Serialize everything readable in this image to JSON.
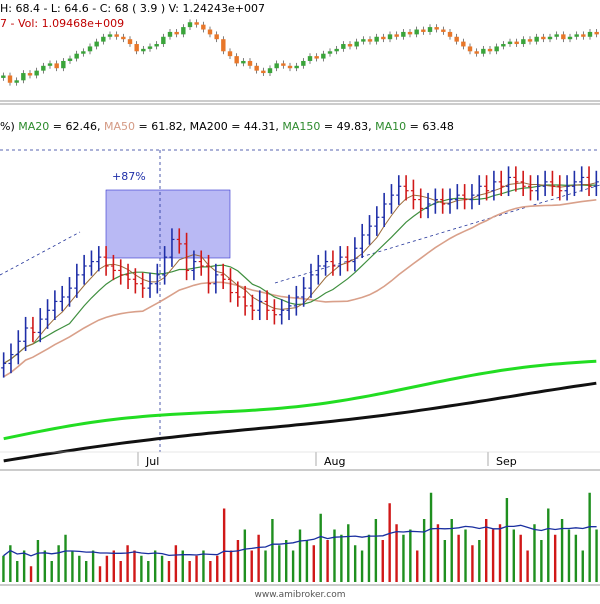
{
  "colors": {
    "up": "#1f2fa8",
    "down": "#d01818",
    "cs_up": "#3aa43a",
    "cs_down": "#e8772a",
    "ma20": "#3f8f3f",
    "ma50": "#d9a08a",
    "ma10": "#9b6b3a",
    "ma150": "#22dd22",
    "ma200": "#111111",
    "volma": "#1a2fa0",
    "box": "#b9b9f4",
    "box_border": "#3333cc"
  },
  "pane1": {
    "header_text": "H: 68.4 - L: 64.6 - C: 68 ( 3.9 ) V: 1.24243e+007",
    "vol_text": "7 - Vol: 1.09468e+009"
  },
  "pane2": {
    "header_parts": [
      {
        "text": "%)",
        "color": "#000000"
      },
      {
        "text": "MA20",
        "color": "#2e8b2e"
      },
      {
        "text": "= 62.46,",
        "color": "#000000"
      },
      {
        "text": "MA50",
        "color": "#d49a84"
      },
      {
        "text": "= 61.82,",
        "color": "#000000"
      },
      {
        "text": "MA200",
        "color": "#000000"
      },
      {
        "text": "= 44.31,",
        "color": "#000000"
      },
      {
        "text": "MA150",
        "color": "#2e8b2e"
      },
      {
        "text": "= 49.83,",
        "color": "#000000"
      },
      {
        "text": "MA10",
        "color": "#2e8b2e"
      },
      {
        "text": "= 63.48",
        "color": "#000000"
      }
    ],
    "annotation": "+87%",
    "months": [
      "Jul",
      "Aug",
      "Sep"
    ]
  },
  "footer": {
    "watermark": "www.amibroker.com"
  },
  "chart_data": [
    {
      "type": "candlestick",
      "pane": "overview",
      "values": [
        50,
        47,
        48,
        51,
        50,
        52,
        54,
        55,
        53,
        56,
        57,
        59,
        60,
        62,
        64,
        66,
        67,
        66,
        65,
        63,
        60,
        61,
        62,
        63,
        66,
        68,
        67,
        70,
        72,
        71,
        69,
        67,
        65,
        60,
        58,
        55,
        56,
        54,
        52,
        51,
        53,
        55,
        54,
        53,
        54,
        56,
        58,
        57,
        59,
        60,
        61,
        63,
        62,
        64,
        65,
        64,
        66,
        65,
        67,
        66,
        68,
        67,
        69,
        68,
        70,
        69,
        68,
        66,
        64,
        62,
        60,
        59,
        61,
        60,
        62,
        63,
        64,
        63,
        65,
        64,
        66,
        65,
        66,
        67,
        65,
        66,
        67,
        66,
        68,
        67
      ]
    },
    {
      "type": "ohlc",
      "pane": "price",
      "months": [
        "Jul",
        "Aug",
        "Sep"
      ],
      "closes": [
        40,
        42,
        45,
        48,
        47,
        50,
        52,
        54,
        55,
        57,
        60,
        62,
        63,
        64,
        62,
        61,
        60,
        59,
        58,
        57,
        58,
        60,
        64,
        68,
        67,
        61,
        63,
        62,
        58,
        60,
        59,
        56,
        55,
        53,
        52,
        54,
        52,
        51,
        52,
        53,
        55,
        57,
        60,
        62,
        63,
        62,
        64,
        63,
        66,
        69,
        71,
        73,
        76,
        78,
        80,
        79,
        77,
        75,
        76,
        77,
        76,
        77,
        78,
        77,
        78,
        80,
        79,
        81,
        80,
        82,
        81,
        80,
        79,
        80,
        81,
        80,
        79,
        80,
        81,
        82,
        80,
        81
      ],
      "ma_lines": {
        "MA20": 62.46,
        "MA50": 61.82,
        "MA200": 44.31,
        "MA150": 49.83,
        "MA10": 63.48
      }
    },
    {
      "type": "bar",
      "pane": "volume",
      "values": [
        0.25,
        0.35,
        0.2,
        0.3,
        0.15,
        0.4,
        0.3,
        0.2,
        0.35,
        0.45,
        0.3,
        0.25,
        0.2,
        0.3,
        0.15,
        0.25,
        0.3,
        0.2,
        0.35,
        0.3,
        0.25,
        0.2,
        0.3,
        0.25,
        0.2,
        0.35,
        0.3,
        0.2,
        0.25,
        0.3,
        0.2,
        0.25,
        0.7,
        0.3,
        0.4,
        0.5,
        0.3,
        0.45,
        0.3,
        0.6,
        0.35,
        0.4,
        0.3,
        0.5,
        0.4,
        0.35,
        0.65,
        0.4,
        0.5,
        0.45,
        0.55,
        0.35,
        0.3,
        0.45,
        0.6,
        0.4,
        0.75,
        0.55,
        0.45,
        0.5,
        0.3,
        0.6,
        0.85,
        0.55,
        0.4,
        0.6,
        0.45,
        0.5,
        0.35,
        0.4,
        0.6,
        0.5,
        0.55,
        0.8,
        0.5,
        0.45,
        0.3,
        0.55,
        0.4,
        0.7,
        0.45,
        0.6,
        0.5,
        0.45,
        0.3,
        0.85,
        0.5
      ]
    }
  ]
}
